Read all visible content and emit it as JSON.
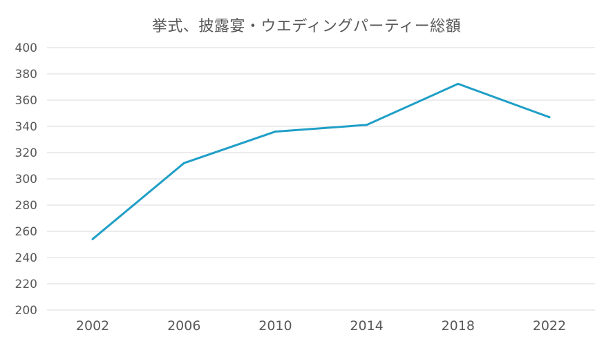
{
  "chart_data": {
    "type": "line",
    "title": "挙式、披露宴・ウエディングパーティー総額",
    "xlabel": "",
    "ylabel": "",
    "categories": [
      "2002",
      "2006",
      "2010",
      "2014",
      "2018",
      "2022"
    ],
    "series": [
      {
        "values": [
          254.1,
          312.0,
          336.0,
          341.1,
          372.4,
          347.0
        ],
        "color": "#1f9fc7"
      }
    ],
    "ylim": [
      200,
      400
    ],
    "yticks": [
      "200",
      "220",
      "240",
      "260",
      "280",
      "300",
      "320",
      "340",
      "360",
      "380",
      "400"
    ],
    "grid": true,
    "legend": "none"
  },
  "colors": {
    "line": "#1f9fc7",
    "grid": "#d9d9d9",
    "text": "#595959"
  }
}
